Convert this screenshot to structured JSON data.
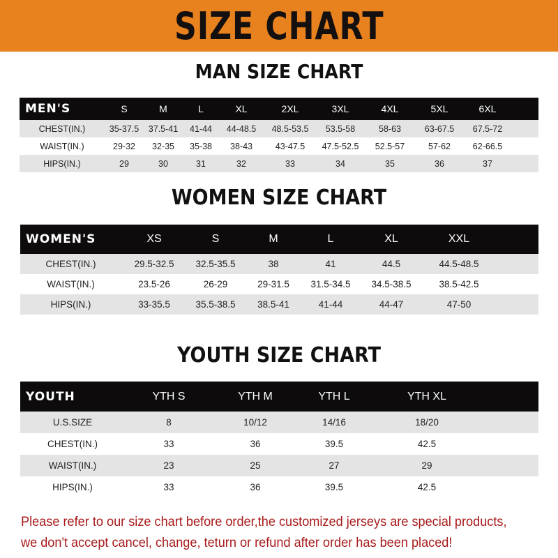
{
  "title": "SIZE CHART",
  "men": {
    "title": "MAN SIZE CHART",
    "header_label": "MEN'S",
    "sizes": [
      "S",
      "M",
      "L",
      "XL",
      "2XL",
      "3XL",
      "4XL",
      "5XL",
      "6XL"
    ],
    "rows": [
      {
        "label": "CHEST(IN.)",
        "values": [
          "35-37.5",
          "37.5-41",
          "41-44",
          "44-48.5",
          "48.5-53.5",
          "53.5-58",
          "58-63",
          "63-67.5",
          "67.5-72"
        ]
      },
      {
        "label": "WAIST(IN.)",
        "values": [
          "29-32",
          "32-35",
          "35-38",
          "38-43",
          "43-47.5",
          "47.5-52.5",
          "52.5-57",
          "57-62",
          "62-66.5"
        ]
      },
      {
        "label": "HIPS(IN.)",
        "values": [
          "29",
          "30",
          "31",
          "32",
          "33",
          "34",
          "35",
          "36",
          "37"
        ]
      }
    ]
  },
  "women": {
    "title": "WOMEN SIZE CHART",
    "header_label": "WOMEN'S",
    "sizes": [
      "XS",
      "S",
      "M",
      "L",
      "XL",
      "XXL"
    ],
    "rows": [
      {
        "label": "CHEST(IN.)",
        "values": [
          "29.5-32.5",
          "32.5-35.5",
          "38",
          "41",
          "44.5",
          "44.5-48.5"
        ]
      },
      {
        "label": "WAIST(IN.)",
        "values": [
          "23.5-26",
          "26-29",
          "29-31.5",
          "31.5-34.5",
          "34.5-38.5",
          "38.5-42.5"
        ]
      },
      {
        "label": "HIPS(IN.)",
        "values": [
          "33-35.5",
          "35.5-38.5",
          "38.5-41",
          "41-44",
          "44-47",
          "47-50"
        ]
      }
    ]
  },
  "youth": {
    "title": "YOUTH SIZE CHART",
    "header_label": "YOUTH",
    "sizes": [
      "YTH S",
      "YTH M",
      "YTH L",
      "YTH XL"
    ],
    "rows": [
      {
        "label": "U.S.SIZE",
        "values": [
          "8",
          "10/12",
          "14/16",
          "18/20"
        ]
      },
      {
        "label": "CHEST(IN.)",
        "values": [
          "33",
          "36",
          "39.5",
          "42.5"
        ]
      },
      {
        "label": "WAIST(IN.)",
        "values": [
          "23",
          "25",
          "27",
          "29"
        ]
      },
      {
        "label": "HIPS(IN.)",
        "values": [
          "33",
          "36",
          "39.5",
          "42.5"
        ]
      }
    ]
  },
  "note": {
    "line1": "Please refer to our size chart before order,the customized jerseys are special products,",
    "line2": "we don't accept cancel, change, teturn or refund after order has been placed!"
  },
  "colors": {
    "banner": "#e8821e",
    "header_row": "#0d0b0b",
    "stripe": "#e4e4e4",
    "note": "#a81a1a"
  }
}
